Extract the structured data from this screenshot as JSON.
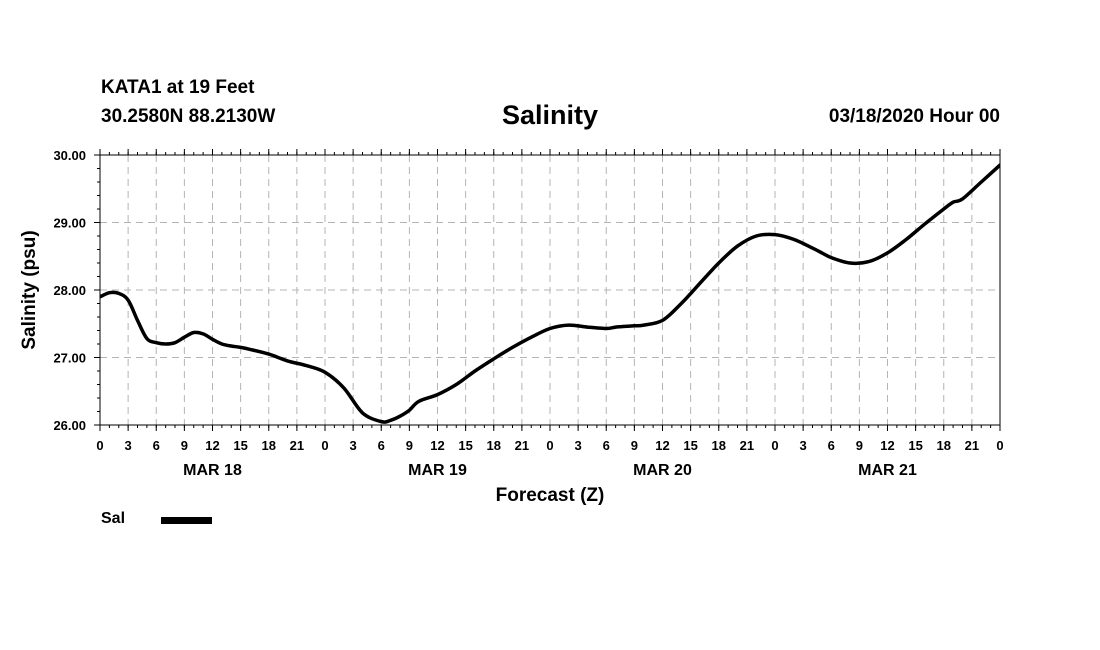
{
  "header": {
    "station_name": "KATA1 at 19 Feet",
    "station_coords": "30.2580N 88.2130W",
    "title": "Salinity",
    "run_time": "03/18/2020 Hour 00"
  },
  "chart_data": {
    "type": "line",
    "title": "Salinity",
    "xlabel": "Forecast (Z)",
    "ylabel": "Salinity (psu)",
    "x_unit": "forecast hour from 03/18/2020 00Z",
    "xlim": [
      0,
      96
    ],
    "ylim": [
      26.0,
      30.0
    ],
    "y_ticks": [
      "26.00",
      "27.00",
      "28.00",
      "29.00",
      "30.00"
    ],
    "y_tick_values": [
      26,
      27,
      28,
      29,
      30
    ],
    "x_tick_labels": [
      "0",
      "3",
      "6",
      "9",
      "12",
      "15",
      "18",
      "21",
      "0",
      "3",
      "6",
      "9",
      "12",
      "15",
      "18",
      "21",
      "0",
      "3",
      "6",
      "9",
      "12",
      "15",
      "18",
      "21",
      "0",
      "3",
      "6",
      "9",
      "12",
      "15",
      "18",
      "21",
      "0"
    ],
    "day_labels": [
      "MAR 18",
      "MAR 19",
      "MAR 20",
      "MAR 21"
    ],
    "day_label_hours": [
      12,
      36,
      60,
      84
    ],
    "grid": true,
    "legend": {
      "placement": "bottom-left",
      "entries": [
        "Sal"
      ]
    },
    "series": [
      {
        "name": "Sal",
        "color": "#000000",
        "x": [
          0,
          1,
          2,
          3,
          4,
          5,
          6,
          7,
          8,
          9,
          10,
          11,
          12,
          13,
          14,
          15,
          16,
          18,
          20,
          22,
          24,
          26,
          28,
          30,
          31,
          32,
          33,
          34,
          36,
          38,
          40,
          42,
          44,
          46,
          48,
          50,
          52,
          54,
          55,
          56,
          57,
          58,
          60,
          62,
          64,
          66,
          68,
          70,
          72,
          74,
          76,
          77,
          78,
          80,
          82,
          84,
          86,
          88,
          90,
          91,
          92,
          94,
          96
        ],
        "y": [
          27.9,
          27.96,
          27.95,
          27.85,
          27.55,
          27.28,
          27.22,
          27.2,
          27.22,
          27.3,
          27.37,
          27.35,
          27.27,
          27.2,
          27.17,
          27.15,
          27.12,
          27.05,
          26.95,
          26.88,
          26.78,
          26.55,
          26.18,
          26.05,
          26.07,
          26.13,
          26.22,
          26.35,
          26.45,
          26.6,
          26.8,
          26.98,
          27.15,
          27.3,
          27.43,
          27.48,
          27.45,
          27.43,
          27.45,
          27.46,
          27.47,
          27.48,
          27.55,
          27.8,
          28.1,
          28.4,
          28.65,
          28.8,
          28.82,
          28.75,
          28.62,
          28.55,
          28.48,
          28.4,
          28.42,
          28.55,
          28.75,
          28.98,
          29.2,
          29.3,
          29.35,
          29.6,
          29.85
        ]
      }
    ]
  }
}
